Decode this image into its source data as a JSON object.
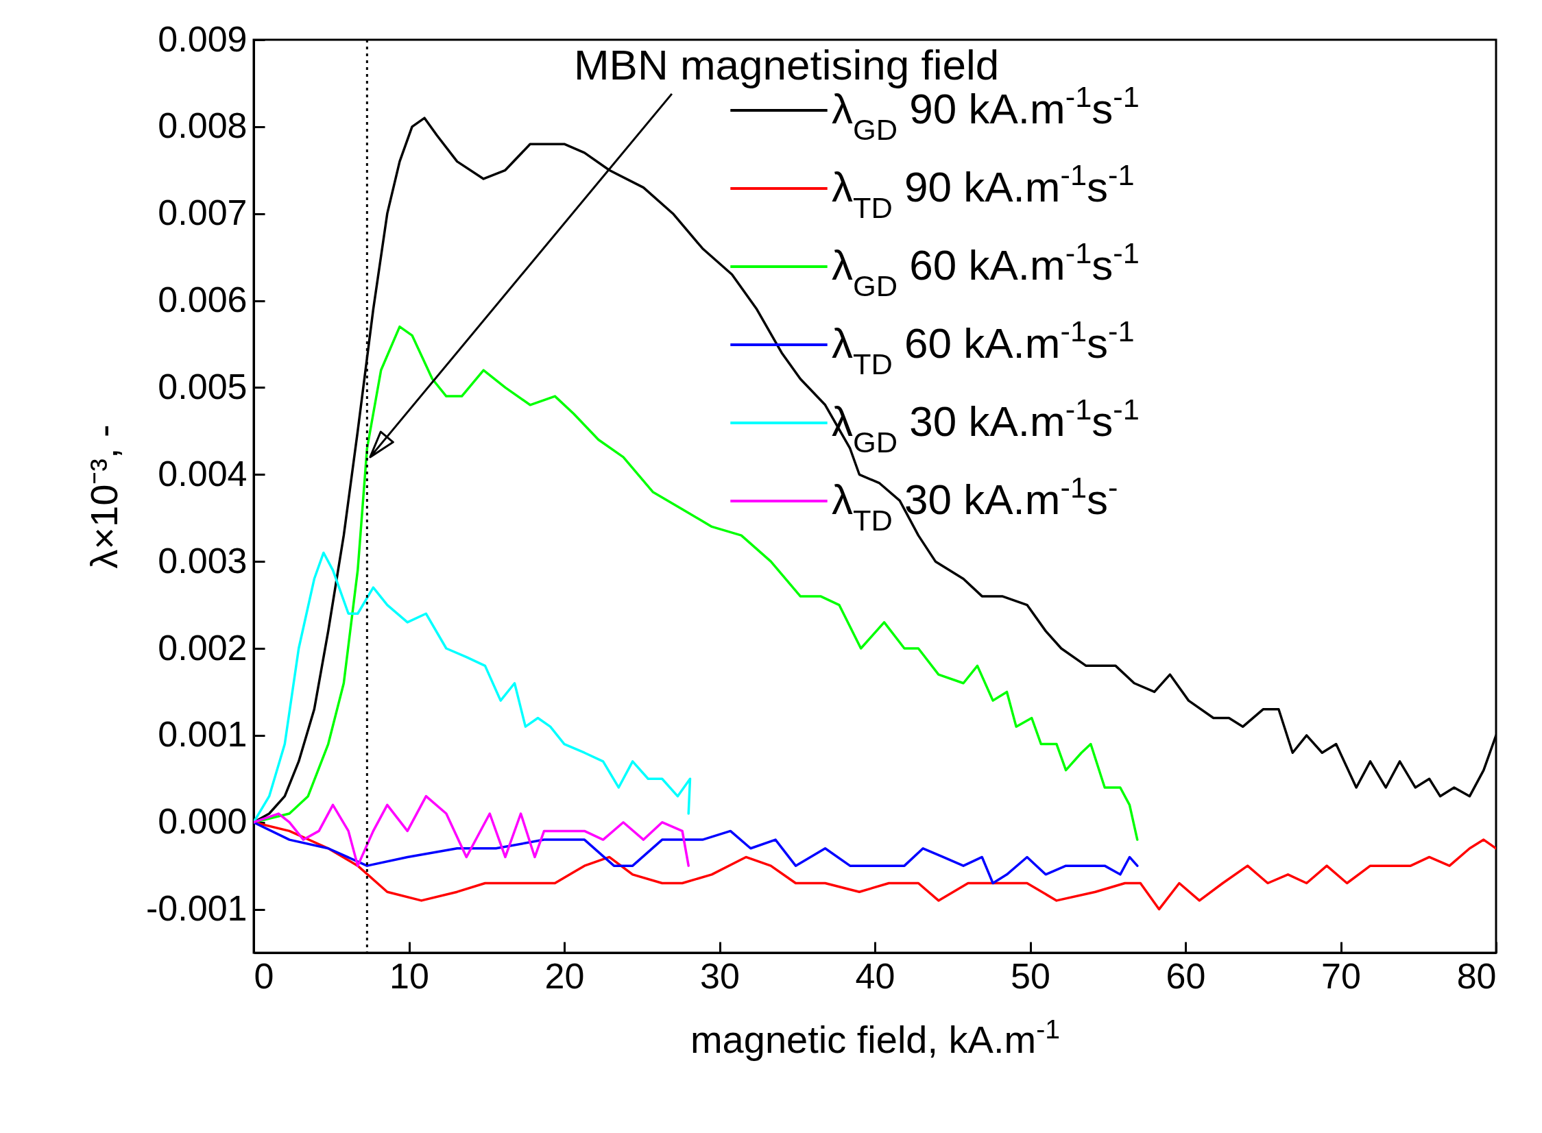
{
  "chart_data": {
    "type": "line",
    "xlabel": "magnetic field, kA.m$^{-1}$",
    "ylabel": "λ×10⁻³, -",
    "xlim": [
      0,
      80
    ],
    "xticks": [
      0,
      10,
      20,
      30,
      40,
      50,
      60,
      70,
      80
    ],
    "ylim": [
      -0.0015,
      0.009
    ],
    "yticks": [
      -0.001,
      {
        "value": 0,
        "label": "0.000"
      },
      0.001,
      0.002,
      0.003,
      0.004,
      0.005,
      0.006,
      0.007,
      0.008,
      0.009
    ],
    "legend": "top right",
    "grid": false,
    "series": [
      {
        "name": "λ$_{GD}$ 90 kA.m$^{-1}$s$^{-1}$",
        "color": "#000000",
        "x": [
          0,
          1,
          2,
          2.9,
          3.9,
          4.8,
          5.8,
          6.7,
          7.7,
          8.6,
          9.4,
          10.2,
          11,
          11.8,
          13.1,
          14.8,
          16.2,
          17.8,
          19,
          20,
          21.3,
          22.9,
          25.1,
          27,
          28.9,
          30.8,
          32.4,
          34,
          35.2,
          36.8,
          38.4,
          39,
          40.3,
          41.6,
          42.8,
          43.9,
          45.7,
          46.9,
          48.2,
          49.8,
          51,
          52,
          53.6,
          54.6,
          55.5,
          56.7,
          58,
          59,
          60.2,
          61.8,
          62.8,
          63.7,
          65,
          66,
          66.9,
          67.8,
          68.8,
          69.7,
          71,
          71.9,
          72.9,
          73.8,
          74.8,
          75.7,
          76.4,
          77.3,
          78.3,
          79.2,
          80
        ],
        "values": [
          0,
          0.0001,
          0.0003,
          0.0007,
          0.0013,
          0.0022,
          0.0033,
          0.0045,
          0.0059,
          0.007,
          0.0076,
          0.008,
          0.0081,
          0.0079,
          0.0076,
          0.0074,
          0.0075,
          0.0078,
          0.0078,
          0.0078,
          0.0077,
          0.0075,
          0.0073,
          0.007,
          0.0066,
          0.0063,
          0.0059,
          0.0054,
          0.0051,
          0.0048,
          0.0043,
          0.004,
          0.0039,
          0.0037,
          0.0033,
          0.003,
          0.0028,
          0.0026,
          0.0026,
          0.0025,
          0.0022,
          0.002,
          0.0018,
          0.0018,
          0.0018,
          0.0016,
          0.0015,
          0.0017,
          0.0014,
          0.0012,
          0.0012,
          0.0011,
          0.0013,
          0.0013,
          0.0008,
          0.001,
          0.0008,
          0.0009,
          0.0004,
          0.0007,
          0.0004,
          0.0007,
          0.0004,
          0.0005,
          0.0003,
          0.0004,
          0.0003,
          0.0006,
          0.001
        ]
      },
      {
        "name": "λ$_{TD}$ 90 kA.m$^{-1}$s$^{-1}$",
        "color": "#ff0000",
        "x": [
          0,
          2.3,
          4.8,
          6.7,
          8.6,
          10.8,
          13.1,
          14.9,
          17.5,
          19.4,
          21.3,
          22.9,
          24.4,
          26.3,
          27.6,
          29.5,
          31.7,
          33.3,
          34.9,
          36.8,
          39,
          40.9,
          42.8,
          44.1,
          46,
          47.9,
          49.8,
          51.7,
          54.2,
          56.1,
          57.1,
          58.3,
          59.6,
          60.9,
          62.4,
          64,
          65.3,
          66.6,
          67.8,
          69.1,
          70.4,
          71.9,
          73.2,
          74.5,
          75.7,
          77,
          78.3,
          79.2,
          80
        ],
        "values": [
          0,
          -0.0001,
          -0.0003,
          -0.0005,
          -0.0008,
          -0.0009,
          -0.0008,
          -0.0007,
          -0.0007,
          -0.0007,
          -0.0005,
          -0.0004,
          -0.0006,
          -0.0007,
          -0.0007,
          -0.0006,
          -0.0004,
          -0.0005,
          -0.0007,
          -0.0007,
          -0.0008,
          -0.0007,
          -0.0007,
          -0.0009,
          -0.0007,
          -0.0007,
          -0.0007,
          -0.0009,
          -0.0008,
          -0.0007,
          -0.0007,
          -0.001,
          -0.0007,
          -0.0009,
          -0.0007,
          -0.0005,
          -0.0007,
          -0.0006,
          -0.0007,
          -0.0005,
          -0.0007,
          -0.0005,
          -0.0005,
          -0.0005,
          -0.0004,
          -0.0005,
          -0.0003,
          -0.0002,
          -0.0003
        ]
      },
      {
        "name": "λ$_{GD}$ 60 kA.m$^{-1}$s$^{-1}$",
        "color": "#00ff00",
        "x": [
          0,
          2.3,
          3.5,
          4.8,
          5.8,
          6.7,
          7.3,
          8.2,
          9.4,
          10.2,
          11.5,
          12.4,
          13.4,
          14.8,
          16.2,
          17.8,
          19.4,
          20.6,
          22.2,
          23.8,
          25.7,
          27.6,
          29.5,
          31.4,
          33.3,
          35.2,
          36.5,
          37.7,
          39.1,
          40.6,
          41.9,
          42.8,
          44.1,
          45.7,
          46.6,
          47.6,
          48.5,
          49.1,
          50.1,
          50.7,
          51.7,
          52.3,
          53.3,
          53.9,
          54.8,
          55.8,
          56.4,
          56.9
        ],
        "values": [
          0,
          0.0001,
          0.0003,
          0.0009,
          0.0016,
          0.0029,
          0.0043,
          0.0052,
          0.0057,
          0.0056,
          0.0051,
          0.0049,
          0.0049,
          0.0052,
          0.005,
          0.0048,
          0.0049,
          0.0047,
          0.0044,
          0.0042,
          0.0038,
          0.0036,
          0.0034,
          0.0033,
          0.003,
          0.0026,
          0.0026,
          0.0025,
          0.002,
          0.0023,
          0.002,
          0.002,
          0.0017,
          0.0016,
          0.0018,
          0.0014,
          0.0015,
          0.0011,
          0.0012,
          0.0009,
          0.0009,
          0.0006,
          0.0008,
          0.0009,
          0.0004,
          0.0004,
          0.0002,
          -0.0002
        ]
      },
      {
        "name": "λ$_{TD}$ 60 kA.m$^{-1}$s$^{-1}$",
        "color": "#0000ff",
        "x": [
          0,
          2.3,
          4.8,
          7.3,
          9.9,
          13.1,
          15.6,
          18.7,
          21.3,
          23.2,
          24.4,
          26.3,
          28.9,
          30.7,
          32,
          33.6,
          34.9,
          36.8,
          38.4,
          40.3,
          41.9,
          43.1,
          44.4,
          45.7,
          46.9,
          47.6,
          48.5,
          49.8,
          51,
          52.3,
          53.6,
          54.8,
          55.8,
          56.4,
          56.9
        ],
        "values": [
          0,
          -0.0002,
          -0.0003,
          -0.0005,
          -0.0004,
          -0.0003,
          -0.0003,
          -0.0002,
          -0.0002,
          -0.0005,
          -0.0005,
          -0.0002,
          -0.0002,
          -0.0001,
          -0.0003,
          -0.0002,
          -0.0005,
          -0.0003,
          -0.0005,
          -0.0005,
          -0.0005,
          -0.0003,
          -0.0004,
          -0.0005,
          -0.0004,
          -0.0007,
          -0.0006,
          -0.0004,
          -0.0006,
          -0.0005,
          -0.0005,
          -0.0005,
          -0.0006,
          -0.0004,
          -0.0005
        ]
      },
      {
        "name": "λ$_{GD}$ 30 kA.m$^{-1}$s$^{-1}$",
        "color": "#00ffff",
        "x": [
          0,
          1,
          2,
          2.9,
          3.9,
          4.5,
          5.1,
          6.1,
          6.7,
          7.7,
          8.6,
          9.9,
          11.1,
          12.4,
          13.7,
          14.9,
          15.9,
          16.8,
          17.5,
          18.3,
          19.1,
          20,
          21.3,
          22.5,
          23.5,
          24.4,
          25.4,
          26.3,
          27.3,
          28.1,
          28
        ],
        "values": [
          0,
          0.0003,
          0.0009,
          0.002,
          0.0028,
          0.0031,
          0.0029,
          0.0024,
          0.0024,
          0.0027,
          0.0025,
          0.0023,
          0.0024,
          0.002,
          0.0019,
          0.0018,
          0.0014,
          0.0016,
          0.0011,
          0.0012,
          0.0011,
          0.0009,
          0.0008,
          0.0007,
          0.0004,
          0.0007,
          0.0005,
          0.0005,
          0.0003,
          0.0005,
          0.0001
        ]
      },
      {
        "name": "λ$_{TD}$ 30 kA.m$^{-1}$s$^{-}$",
        "color": "#ff00ff",
        "x": [
          0,
          1.6,
          2.3,
          3.2,
          4.2,
          5.1,
          6.1,
          6.7,
          7.7,
          8.6,
          9.9,
          11.1,
          12.4,
          13.7,
          15.2,
          16.2,
          17.2,
          18.1,
          18.7,
          20,
          21.3,
          22.5,
          23.8,
          25.1,
          26.3,
          27.6,
          28
        ],
        "values": [
          0,
          0.0001,
          0,
          -0.0002,
          -0.0001,
          0.0002,
          -0.0001,
          -0.0005,
          -0.0001,
          0.0002,
          -0.0001,
          0.0003,
          0.0001,
          -0.0004,
          0.0001,
          -0.0004,
          0.0001,
          -0.0004,
          -0.0001,
          -0.0001,
          -0.0001,
          -0.0002,
          0,
          -0.0002,
          0,
          -0.0001,
          -0.0005
        ]
      }
    ],
    "ref_lines": [
      {
        "axis": "x",
        "value": 7.3,
        "line_style": "dotted",
        "color": "#000000"
      }
    ],
    "annotations": [
      {
        "text": "MBN magnetising field",
        "x": 7.5,
        "y": 0.0042
      }
    ]
  }
}
